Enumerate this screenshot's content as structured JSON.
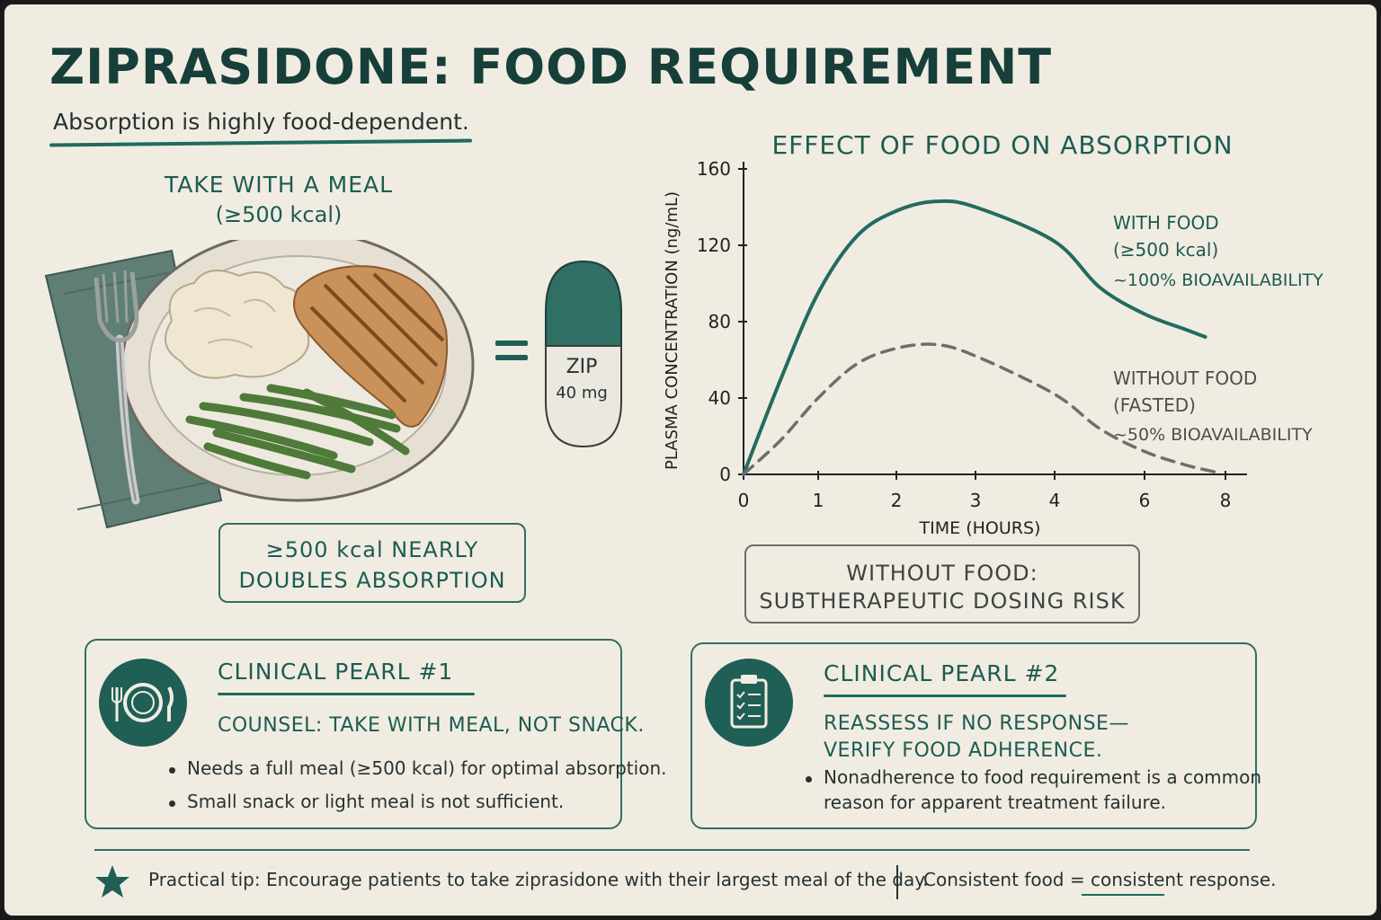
{
  "title": "ZIPRASIDONE: FOOD REQUIREMENT",
  "subtitle": "Absorption is highly food-dependent.",
  "meal": {
    "heading": "TAKE WITH A MEAL",
    "subheading": "(≥500 kcal)",
    "equals": "=",
    "capsule_line1": "ZIP",
    "capsule_line2": "40 mg",
    "box_line1": "≥500 kcal NEARLY",
    "box_line2": "DOUBLES ABSORPTION"
  },
  "colors": {
    "accent": "#1f5f55",
    "with_food_curve": "#236b5f",
    "without_food_curve": "#6e6e6e",
    "background": "#f1ece2"
  },
  "chart_data": {
    "type": "line",
    "title": "EFFECT OF FOOD ON ABSORPTION",
    "xlabel": "TIME (HOURS)",
    "ylabel": "PLASMA CONCENTRATION (ng/mL)",
    "x_ticks": [
      0,
      1,
      2,
      3,
      4,
      6,
      8
    ],
    "y_ticks": [
      0,
      40,
      80,
      120,
      160
    ],
    "ylim": [
      0,
      160
    ],
    "grid": false,
    "series": [
      {
        "name": "WITH FOOD",
        "label_lines": [
          "WITH FOOD",
          "(≥500 kcal)",
          "~100% BIOAVAILABILITY"
        ],
        "style": "solid",
        "x": [
          0,
          0.5,
          1,
          1.5,
          2,
          2.5,
          3,
          4,
          5,
          6,
          7,
          7.5
        ],
        "y": [
          0,
          50,
          95,
          125,
          138,
          143,
          140,
          122,
          98,
          84,
          76,
          72
        ]
      },
      {
        "name": "WITHOUT FOOD",
        "label_lines": [
          "WITHOUT FOOD",
          "(FASTED)",
          "~50% BIOAVAILABILITY"
        ],
        "style": "dashed",
        "x": [
          0,
          0.5,
          1,
          1.5,
          2,
          2.5,
          3,
          4,
          5,
          6,
          7,
          7.8
        ],
        "y": [
          0,
          18,
          40,
          58,
          66,
          68,
          62,
          42,
          24,
          12,
          5,
          1
        ]
      }
    ]
  },
  "risk_box": {
    "line1": "WITHOUT FOOD:",
    "line2": "SUBTHERAPEUTIC DOSING RISK"
  },
  "pearl1": {
    "title": "CLINICAL PEARL #1",
    "lead": "COUNSEL: TAKE WITH MEAL, NOT SNACK.",
    "bullets": [
      "Needs a full meal (≥500 kcal) for optimal absorption.",
      "Small snack or light meal is not sufficient."
    ],
    "icon": "plate-fork-knife-icon"
  },
  "pearl2": {
    "title": "CLINICAL PEARL #2",
    "lead_line1": "REASSESS IF NO RESPONSE—",
    "lead_line2": "VERIFY FOOD ADHERENCE.",
    "bullet_line1": "Nonadherence to food requirement is a common",
    "bullet_line2": "reason for apparent treatment failure.",
    "icon": "clipboard-checklist-icon"
  },
  "footer": {
    "tip": "Practical tip: Encourage patients to take ziprasidone with their largest meal of the day.",
    "consistent": "Consistent food = consistent response.",
    "icon": "star-icon"
  }
}
